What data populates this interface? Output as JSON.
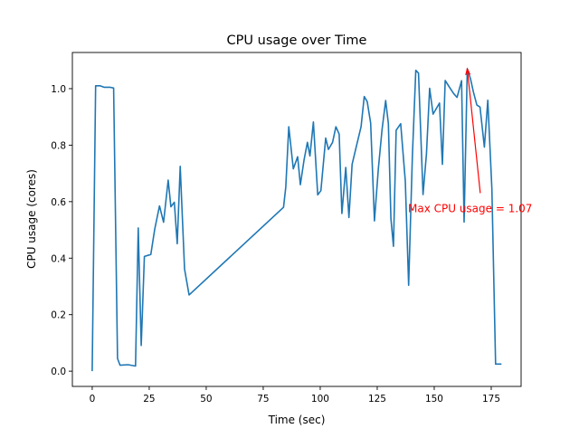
{
  "chart_data": {
    "type": "line",
    "title": "CPU usage over Time",
    "xlabel": "Time (sec)",
    "ylabel": "CPU usage (cores)",
    "xlim": [
      -8.7,
      188.1
    ],
    "ylim": [
      -0.054,
      1.128
    ],
    "xticks": [
      0,
      25,
      50,
      75,
      100,
      125,
      150,
      175
    ],
    "xtick_labels": [
      "0",
      "25",
      "50",
      "75",
      "100",
      "125",
      "150",
      "175"
    ],
    "yticks": [
      0.0,
      0.2,
      0.4,
      0.6,
      0.8,
      1.0
    ],
    "ytick_labels": [
      "0.0",
      "0.2",
      "0.4",
      "0.6",
      "0.8",
      "1.0"
    ],
    "grid": false,
    "line_color": "#1f77b4",
    "annotation_color": "#ff0000",
    "series": [
      {
        "name": "CPU usage",
        "x": [
          0,
          1.5,
          3.4,
          5.2,
          7.8,
          9.4,
          11.1,
          12.2,
          15.7,
          19,
          20.2,
          21.5,
          22.9,
          25.7,
          27.4,
          29.5,
          31.3,
          33.3,
          34.5,
          36,
          37.3,
          38.6,
          40.5,
          42.5,
          83.9,
          84.9,
          86.2,
          88.2,
          90.1,
          91.3,
          92.9,
          94.4,
          95.5,
          97,
          98.9,
          100.3,
          102.4,
          103.6,
          105.4,
          106.9,
          108.3,
          109.5,
          111.2,
          112.6,
          114,
          116,
          117.9,
          119.3,
          120.6,
          122.1,
          123.8,
          125.5,
          127.1,
          128.7,
          129.9,
          131,
          132.1,
          133.3,
          135.3,
          137.3,
          138.8,
          140.4,
          141.9,
          143.1,
          145.1,
          146.6,
          148,
          149.5,
          152.3,
          153.6,
          154.8,
          156.6,
          158.5,
          160,
          162,
          163.1,
          164.5,
          165.9,
          167.2,
          168.7,
          170.1,
          172,
          173.5,
          175.3,
          176.9,
          179.5
        ],
        "y": [
          0,
          1.01,
          1.01,
          1.005,
          1.005,
          1.002,
          0.045,
          0.021,
          0.023,
          0.018,
          0.507,
          0.091,
          0.406,
          0.413,
          0.502,
          0.585,
          0.527,
          0.676,
          0.582,
          0.598,
          0.451,
          0.725,
          0.361,
          0.27,
          0.58,
          0.652,
          0.865,
          0.716,
          0.759,
          0.66,
          0.748,
          0.81,
          0.762,
          0.882,
          0.624,
          0.639,
          0.825,
          0.785,
          0.81,
          0.865,
          0.839,
          0.558,
          0.721,
          0.544,
          0.732,
          0.801,
          0.865,
          0.972,
          0.954,
          0.878,
          0.532,
          0.716,
          0.855,
          0.958,
          0.876,
          0.54,
          0.442,
          0.853,
          0.876,
          0.673,
          0.304,
          0.759,
          1.065,
          1.055,
          0.625,
          0.77,
          1.001,
          0.91,
          0.949,
          0.732,
          1.029,
          1.006,
          0.983,
          0.969,
          1.028,
          0.528,
          1.07,
          1.036,
          0.988,
          0.942,
          0.935,
          0.793,
          0.959,
          0.646,
          0.025,
          0.025
        ]
      }
    ],
    "annotations": [
      {
        "text": "Max CPU usage = 1.07",
        "xy": [
          164.5,
          1.07
        ],
        "xytext": [
          138.5,
          0.575
        ],
        "arrow_tail": [
          170.2,
          0.63
        ]
      }
    ]
  }
}
